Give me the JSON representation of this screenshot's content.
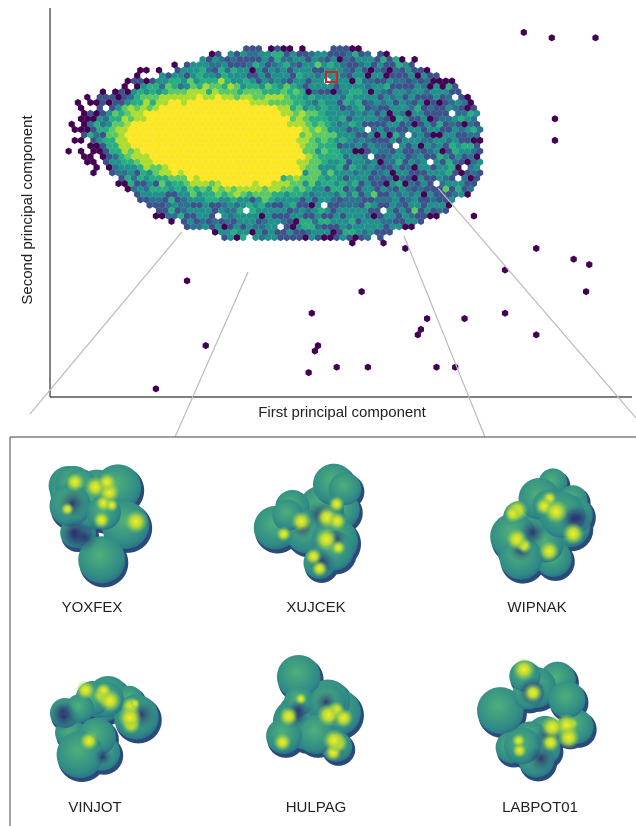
{
  "figure": {
    "x_axis_label": "First principal component",
    "y_axis_label": "Second principal component",
    "molecules": [
      "YOXFEX",
      "XUJCEK",
      "WIPNAK",
      "VINJOT",
      "HULPAG",
      "LABPOT01"
    ]
  }
}
